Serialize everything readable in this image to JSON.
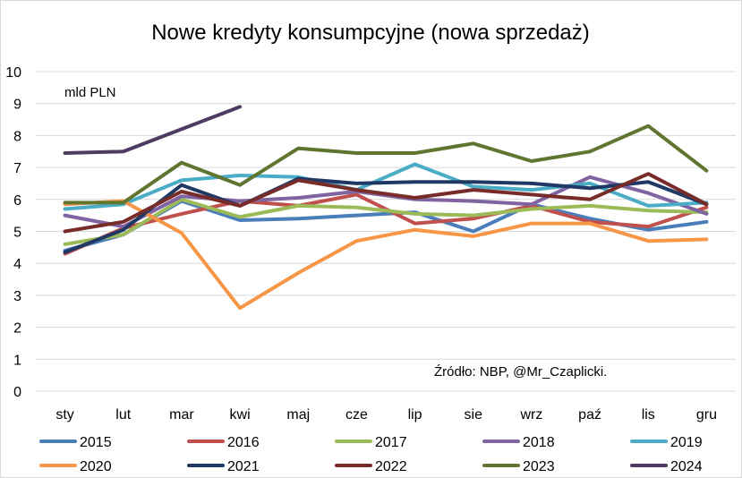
{
  "chart_data": {
    "type": "line",
    "title": "Nowe kredyty konsumpcyjne  (nowa sprzedaż)",
    "unit_label": "mld PLN",
    "source": "Źródło: NBP, @Mr_Czaplicki.",
    "ylim": [
      0,
      10
    ],
    "yticks": [
      "0",
      "1",
      "2",
      "3",
      "4",
      "5",
      "6",
      "7",
      "8",
      "9",
      "10"
    ],
    "grid": true,
    "legend_position": "bottom",
    "categories": [
      "sty",
      "lut",
      "mar",
      "kwi",
      "maj",
      "cze",
      "lip",
      "sie",
      "wrz",
      "paź",
      "lis",
      "gru"
    ],
    "series": [
      {
        "name": "2015",
        "color": "#4a7ebb",
        "values": [
          4.4,
          4.9,
          5.95,
          5.35,
          5.4,
          5.5,
          5.6,
          5.0,
          5.85,
          5.4,
          5.05,
          5.3
        ]
      },
      {
        "name": "2016",
        "color": "#c0504d",
        "values": [
          4.3,
          5.1,
          5.55,
          5.95,
          5.8,
          6.15,
          5.25,
          5.4,
          5.8,
          5.3,
          5.15,
          5.75
        ]
      },
      {
        "name": "2017",
        "color": "#9bbb59",
        "values": [
          4.6,
          4.9,
          6.0,
          5.45,
          5.8,
          5.75,
          5.55,
          5.5,
          5.7,
          5.8,
          5.65,
          5.6
        ]
      },
      {
        "name": "2018",
        "color": "#8064a2",
        "values": [
          5.5,
          5.15,
          6.1,
          5.95,
          6.05,
          6.25,
          6.0,
          5.95,
          5.85,
          6.7,
          6.2,
          5.55
        ]
      },
      {
        "name": "2019",
        "color": "#4bacc6",
        "values": [
          5.7,
          5.85,
          6.6,
          6.75,
          6.7,
          6.3,
          7.1,
          6.4,
          6.3,
          6.5,
          5.8,
          5.9
        ]
      },
      {
        "name": "2020",
        "color": "#f79646",
        "values": [
          5.85,
          5.95,
          4.95,
          2.6,
          3.7,
          4.7,
          5.05,
          4.85,
          5.25,
          5.25,
          4.7,
          4.75
        ]
      },
      {
        "name": "2021",
        "color": "#1f3864",
        "values": [
          4.35,
          5.05,
          6.45,
          5.8,
          6.65,
          6.5,
          6.55,
          6.55,
          6.5,
          6.35,
          6.55,
          5.85
        ]
      },
      {
        "name": "2022",
        "color": "#772c2a",
        "values": [
          5.0,
          5.3,
          6.25,
          5.8,
          6.6,
          6.3,
          6.05,
          6.3,
          6.15,
          6.0,
          6.8,
          5.85
        ]
      },
      {
        "name": "2023",
        "color": "#5f7530",
        "values": [
          5.9,
          5.9,
          7.15,
          6.45,
          7.6,
          7.45,
          7.45,
          7.75,
          7.2,
          7.5,
          8.3,
          6.9
        ]
      },
      {
        "name": "2024",
        "color": "#4d3b62",
        "values": [
          7.45,
          7.5,
          8.2,
          8.9,
          null,
          null,
          null,
          null,
          null,
          null,
          null,
          null
        ]
      }
    ]
  }
}
